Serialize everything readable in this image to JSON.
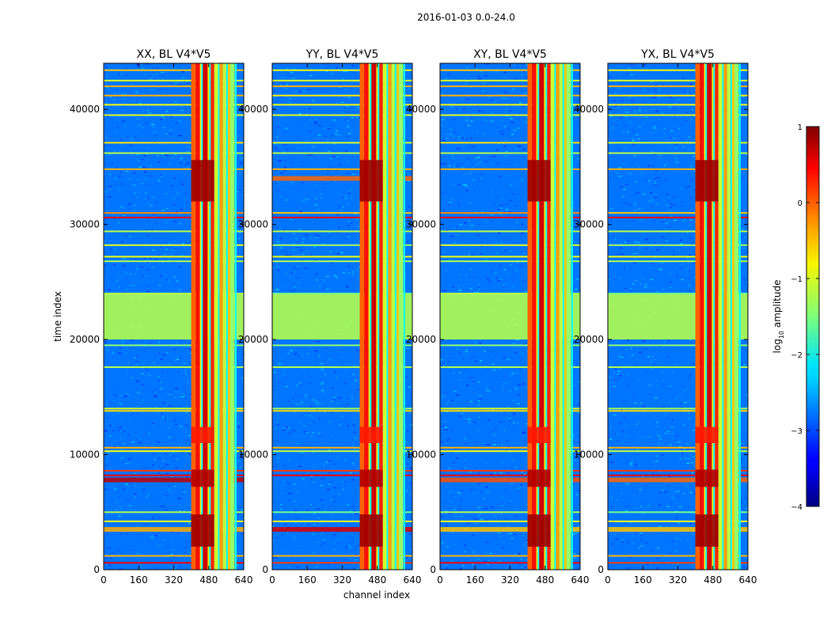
{
  "chart_data": {
    "type": "heatmap",
    "suptitle": "2016-01-03 0.0-24.0",
    "xlabel": "channel index",
    "ylabel": "time index",
    "xlim": [
      0,
      640
    ],
    "ylim": [
      0,
      44000
    ],
    "xticks": [
      0,
      160,
      320,
      480,
      640
    ],
    "yticks": [
      0,
      10000,
      20000,
      30000,
      40000
    ],
    "colorbar": {
      "label": "log",
      "label_sub": "10",
      "label_rest": " amplitude",
      "range": [
        -4,
        1
      ],
      "ticks": [
        1,
        0,
        -1,
        -2,
        -3,
        -4
      ],
      "tick_labels": [
        "1",
        "0",
        "−1",
        "−2",
        "−3",
        "−4"
      ],
      "colormap": "jet"
    },
    "panels": [
      {
        "title": "XX, BL V4*V5",
        "horizontal_features": [
          {
            "y": 7800,
            "intensity": 0.85
          },
          {
            "y": 3500,
            "intensity": 0.35
          }
        ]
      },
      {
        "title": "YY, BL V4*V5",
        "horizontal_features": [
          {
            "y": 3500,
            "intensity": 0.8
          },
          {
            "y": 34000,
            "intensity": 0.5
          }
        ]
      },
      {
        "title": "XY, BL V4*V5",
        "horizontal_features": [
          {
            "y": 7800,
            "intensity": 0.55
          },
          {
            "y": 3500,
            "intensity": 0.3
          }
        ]
      },
      {
        "title": "YX, BL V4*V5",
        "horizontal_features": [
          {
            "y": 7800,
            "intensity": 0.5
          },
          {
            "y": 3500,
            "intensity": 0.3
          }
        ]
      }
    ],
    "bright_channel_bands": [
      {
        "start": 400,
        "end": 420,
        "level": 0.78
      },
      {
        "start": 420,
        "end": 440,
        "level": 0.86
      },
      {
        "start": 440,
        "end": 450,
        "level": 0.62
      },
      {
        "start": 450,
        "end": 475,
        "level": 0.92
      },
      {
        "start": 475,
        "end": 488,
        "level": 0.65
      },
      {
        "start": 488,
        "end": 505,
        "level": 0.84
      },
      {
        "start": 505,
        "end": 525,
        "level": 0.58
      },
      {
        "start": 525,
        "end": 545,
        "level": 0.72
      },
      {
        "start": 545,
        "end": 560,
        "level": 0.56
      },
      {
        "start": 560,
        "end": 578,
        "level": 0.68
      },
      {
        "start": 578,
        "end": 598,
        "level": 0.52
      }
    ],
    "red_time_blocks": [
      {
        "start": 2000,
        "end": 4800,
        "level": 0.97
      },
      {
        "start": 7200,
        "end": 8700,
        "level": 0.95
      },
      {
        "start": 11000,
        "end": 12400,
        "level": 0.85
      },
      {
        "start": 32000,
        "end": 35600,
        "level": 0.97
      }
    ],
    "horizontal_stripes": [
      {
        "y": 600,
        "level": 0.88
      },
      {
        "y": 1200,
        "level": 0.7
      },
      {
        "y": 4200,
        "level": 0.62
      },
      {
        "y": 5000,
        "level": 0.55
      },
      {
        "y": 8200,
        "level": 0.88
      },
      {
        "y": 8600,
        "level": 0.82
      },
      {
        "y": 10300,
        "level": 0.62
      },
      {
        "y": 10600,
        "level": 0.7
      },
      {
        "y": 13800,
        "level": 0.66
      },
      {
        "y": 14000,
        "level": 0.6
      },
      {
        "y": 17600,
        "level": 0.55
      },
      {
        "y": 19500,
        "level": 0.52
      },
      {
        "y": 24000,
        "level": 0.55
      },
      {
        "y": 26800,
        "level": 0.55
      },
      {
        "y": 27200,
        "level": 0.62
      },
      {
        "y": 28200,
        "level": 0.6
      },
      {
        "y": 29400,
        "level": 0.56
      },
      {
        "y": 30600,
        "level": 0.88
      },
      {
        "y": 31000,
        "level": 0.74
      },
      {
        "y": 34800,
        "level": 0.7
      },
      {
        "y": 36200,
        "level": 0.56
      },
      {
        "y": 37100,
        "level": 0.65
      },
      {
        "y": 39500,
        "level": 0.6
      },
      {
        "y": 40400,
        "level": 0.62
      },
      {
        "y": 41200,
        "level": 0.7
      },
      {
        "y": 42000,
        "level": 0.7
      },
      {
        "y": 42500,
        "level": 0.6
      },
      {
        "y": 43400,
        "level": 0.68
      }
    ],
    "green_band": {
      "start": 20000,
      "end": 24000,
      "level": 0.55
    }
  }
}
